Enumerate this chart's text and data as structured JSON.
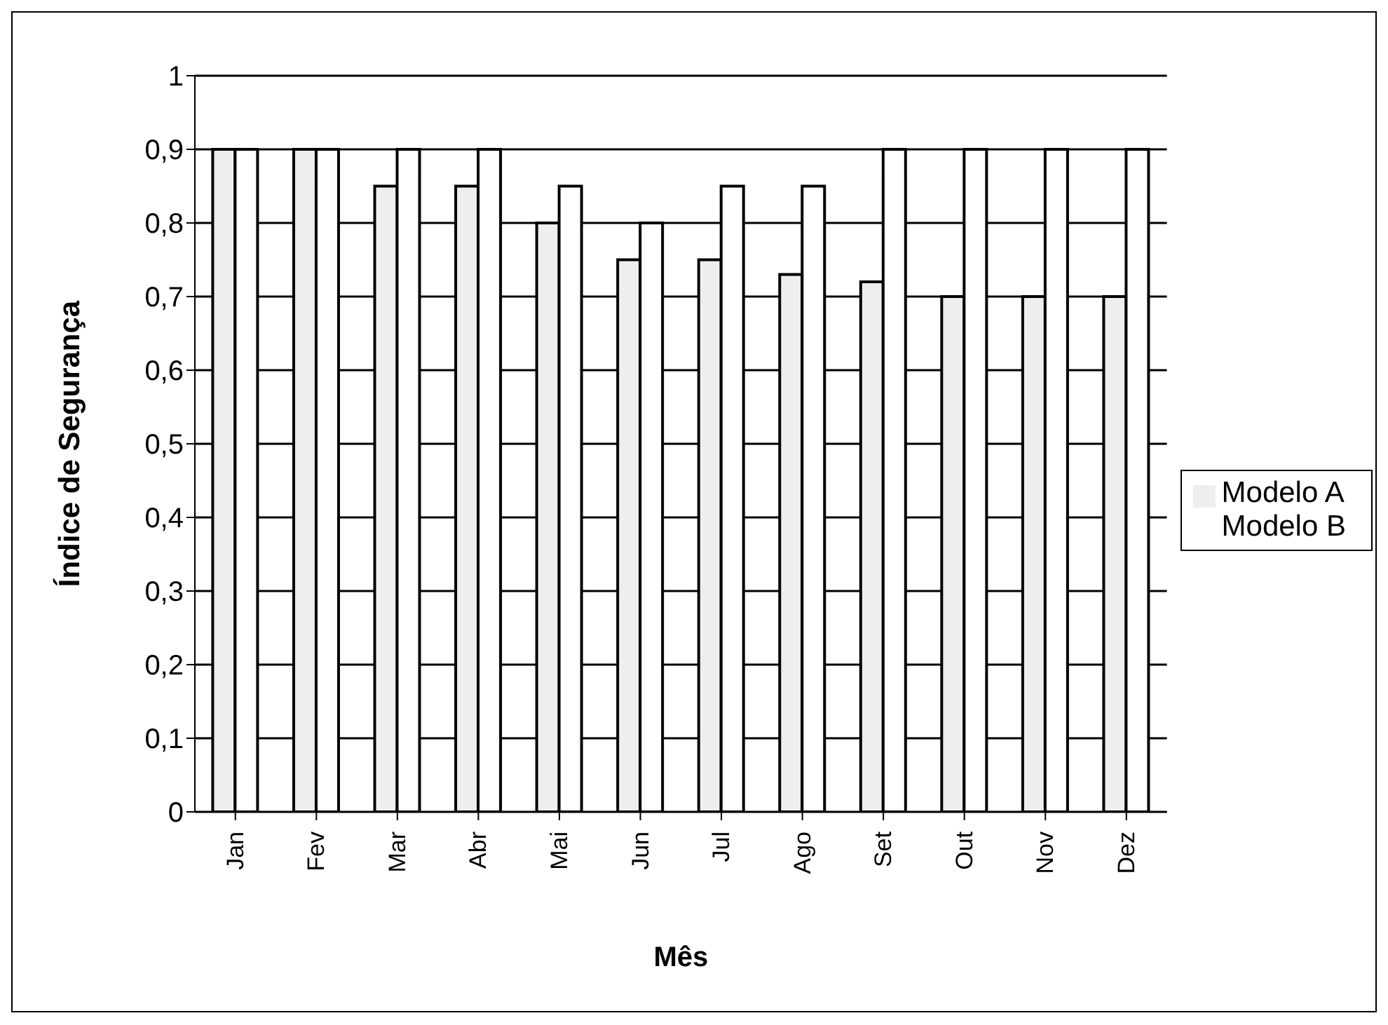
{
  "chart_data": {
    "type": "bar",
    "xlabel": "Mês",
    "ylabel": "Índice de Segurança",
    "categories": [
      "Jan",
      "Fev",
      "Mar",
      "Abr",
      "Mai",
      "Jun",
      "Jul",
      "Ago",
      "Set",
      "Out",
      "Nov",
      "Dez"
    ],
    "series": [
      {
        "name": "Modelo A",
        "color": "#eeeeee",
        "values": [
          0.9,
          0.9,
          0.85,
          0.85,
          0.8,
          0.75,
          0.75,
          0.73,
          0.72,
          0.7,
          0.7,
          0.7
        ]
      },
      {
        "name": "Modelo B",
        "color": "#ffffff",
        "values": [
          0.9,
          0.9,
          0.9,
          0.9,
          0.85,
          0.8,
          0.85,
          0.85,
          0.9,
          0.9,
          0.9,
          0.9
        ]
      }
    ],
    "ylim": [
      0,
      1
    ],
    "yticks": [
      0,
      {
        "value": 0.1,
        "label": "0,1"
      },
      {
        "value": 0.2,
        "label": "0,2"
      },
      {
        "value": 0.3,
        "label": "0,3"
      },
      {
        "value": 0.4,
        "label": "0,4"
      },
      {
        "value": 0.5,
        "label": "0,5"
      },
      {
        "value": 0.6,
        "label": "0,6"
      },
      {
        "value": 0.7,
        "label": "0,7"
      },
      {
        "value": 0.8,
        "label": "0,8"
      },
      {
        "value": 0.9,
        "label": "0,9"
      },
      1
    ],
    "grid": "y",
    "legend": "right"
  }
}
